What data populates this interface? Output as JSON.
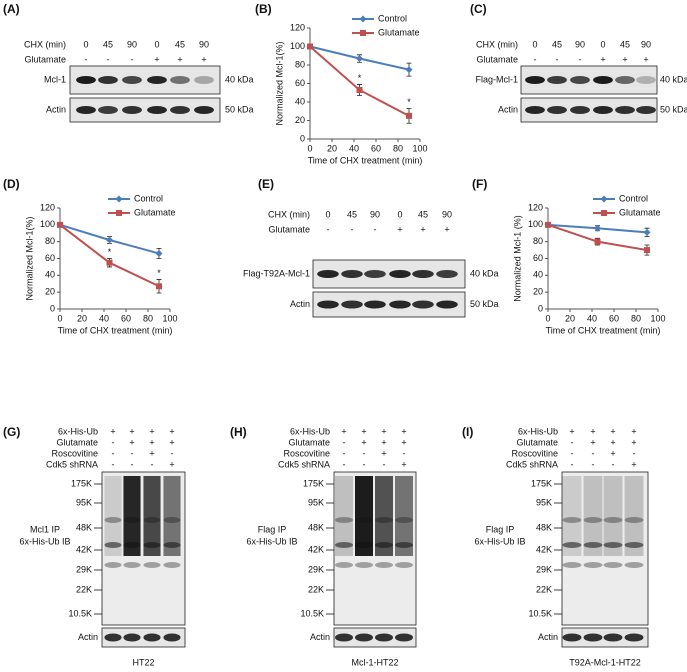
{
  "blots": [
    {
      "panel_label": "(A)",
      "header": [
        {
          "label": "CHX (min)",
          "values": [
            0,
            45,
            90,
            0,
            45,
            90
          ]
        },
        {
          "label": "Glutamate",
          "values": [
            "-",
            "-",
            "-",
            "+",
            "+",
            "+"
          ]
        }
      ],
      "rows": [
        {
          "label": "Mcl-1",
          "size": "40 kDa"
        },
        {
          "label": "Actin",
          "size": "50 kDa"
        }
      ]
    },
    {
      "panel_label": "(C)",
      "header": [
        {
          "label": "CHX (min)",
          "values": [
            0,
            45,
            90,
            0,
            45,
            90
          ]
        },
        {
          "label": "Glutamate",
          "values": [
            "-",
            "-",
            "-",
            "+",
            "+",
            "+"
          ]
        }
      ],
      "rows": [
        {
          "label": "Flag-Mcl-1",
          "size": "40 kDa"
        },
        {
          "label": "Actin",
          "size": "50 kDa"
        }
      ]
    },
    {
      "panel_label": "(E)",
      "header": [
        {
          "label": "CHX (min)",
          "values": [
            0,
            45,
            90,
            0,
            45,
            90
          ]
        },
        {
          "label": "Glutamate",
          "values": [
            "-",
            "-",
            "-",
            "+",
            "+",
            "+"
          ]
        }
      ],
      "rows": [
        {
          "label": "Flag-T92A-Mcl-1",
          "size": "40 kDa"
        },
        {
          "label": "Actin",
          "size": "50 kDa"
        }
      ]
    }
  ],
  "ub_blots": [
    {
      "panel_label": "(G)",
      "header": [
        {
          "label": "6x-His-Ub",
          "values": [
            "+",
            "+",
            "+",
            "+"
          ]
        },
        {
          "label": "Glutamate",
          "values": [
            "-",
            "+",
            "+",
            "+"
          ]
        },
        {
          "label": "Roscovitine",
          "values": [
            "-",
            "-",
            "+",
            "-"
          ]
        },
        {
          "label": "Cdk5 shRNA",
          "values": [
            "-",
            "-",
            "-",
            "+"
          ]
        }
      ],
      "markers": [
        "175K",
        "95K",
        "48K",
        "42K",
        "29K",
        "22K",
        "10.5K"
      ],
      "ip_label": [
        "Mcl1 IP",
        "6x-His-Ub IB"
      ],
      "actin": "Actin",
      "cell_line": "HT22"
    },
    {
      "panel_label": "(H)",
      "header": [
        {
          "label": "6x-His-Ub",
          "values": [
            "+",
            "+",
            "+",
            "+"
          ]
        },
        {
          "label": "Glutamate",
          "values": [
            "-",
            "+",
            "+",
            "+"
          ]
        },
        {
          "label": "Roscovitine",
          "values": [
            "-",
            "-",
            "+",
            "-"
          ]
        },
        {
          "label": "Cdk5 shRNA",
          "values": [
            "-",
            "-",
            "-",
            "+"
          ]
        }
      ],
      "markers": [
        "175K",
        "95K",
        "48K",
        "42K",
        "29K",
        "22K",
        "10.5K"
      ],
      "ip_label": [
        "Flag IP",
        "6x-His-Ub IB"
      ],
      "actin": "Actin",
      "cell_line": "Mcl-1-HT22"
    },
    {
      "panel_label": "(I)",
      "header": [
        {
          "label": "6x-His-Ub",
          "values": [
            "+",
            "+",
            "+",
            "+"
          ]
        },
        {
          "label": "Glutamate",
          "values": [
            "-",
            "+",
            "+",
            "+"
          ]
        },
        {
          "label": "Roscovitine",
          "values": [
            "-",
            "-",
            "+",
            "-"
          ]
        },
        {
          "label": "Cdk5 shRNA",
          "values": [
            "-",
            "-",
            "-",
            "+"
          ]
        }
      ],
      "markers": [
        "175K",
        "95K",
        "48K",
        "42K",
        "29K",
        "22K",
        "10.5K"
      ],
      "ip_label": [
        "Flag IP",
        "6x-His-Ub IB"
      ],
      "actin": "Actin",
      "cell_line": "T92A-Mcl-1-HT22"
    }
  ],
  "chart_data": [
    {
      "type": "line",
      "panel_label": "(B)",
      "x_label": "Time of CHX treatment (min)",
      "y_label": "Normalized Mcl-1(%)",
      "x": [
        0,
        45,
        90
      ],
      "series": [
        {
          "name": "Control",
          "color": "#4a7ebb",
          "marker": "diamond",
          "values": [
            100,
            87,
            75
          ],
          "errors": [
            0,
            4,
            7
          ]
        },
        {
          "name": "Glutamate",
          "color": "#c0504d",
          "marker": "square",
          "values": [
            100,
            53,
            25
          ],
          "errors": [
            0,
            6,
            8
          ]
        }
      ],
      "annotations": [
        {
          "text": "*",
          "x": 45
        },
        {
          "text": "*",
          "x": 90
        }
      ],
      "xlim": [
        0,
        100
      ],
      "xticks": [
        0,
        20,
        40,
        60,
        80,
        100
      ],
      "ylim": [
        0,
        120
      ],
      "yticks": [
        0,
        20,
        40,
        60,
        80,
        100,
        120
      ]
    },
    {
      "type": "line",
      "panel_label": "(D)",
      "x_label": "Time of CHX treatment (min)",
      "y_label": "Normalized Mcl-1(%)",
      "x": [
        0,
        45,
        90
      ],
      "series": [
        {
          "name": "Control",
          "color": "#4a7ebb",
          "marker": "diamond",
          "values": [
            100,
            82,
            66
          ],
          "errors": [
            0,
            4,
            6
          ]
        },
        {
          "name": "Glutamate",
          "color": "#c0504d",
          "marker": "square",
          "values": [
            100,
            55,
            27
          ],
          "errors": [
            0,
            5,
            8
          ]
        }
      ],
      "annotations": [
        {
          "text": "*",
          "x": 45
        },
        {
          "text": "*",
          "x": 90
        }
      ],
      "xlim": [
        0,
        100
      ],
      "xticks": [
        0,
        20,
        40,
        60,
        80,
        100
      ],
      "ylim": [
        0,
        120
      ],
      "yticks": [
        0,
        20,
        40,
        60,
        80,
        100,
        120
      ]
    },
    {
      "type": "line",
      "panel_label": "(F)",
      "x_label": "Time of CHX treatment (min)",
      "y_label": "Normalized Mcl-1 (%)",
      "x": [
        0,
        45,
        90
      ],
      "series": [
        {
          "name": "Control",
          "color": "#4a7ebb",
          "marker": "diamond",
          "values": [
            100,
            96,
            91
          ],
          "errors": [
            0,
            3,
            5
          ]
        },
        {
          "name": "Glutamate",
          "color": "#c0504d",
          "marker": "square",
          "values": [
            100,
            80,
            70
          ],
          "errors": [
            0,
            4,
            6
          ]
        }
      ],
      "annotations": [],
      "xlim": [
        0,
        100
      ],
      "xticks": [
        0,
        20,
        40,
        60,
        80,
        100
      ],
      "ylim": [
        0,
        120
      ],
      "yticks": [
        0,
        20,
        40,
        60,
        80,
        100,
        120
      ]
    }
  ]
}
